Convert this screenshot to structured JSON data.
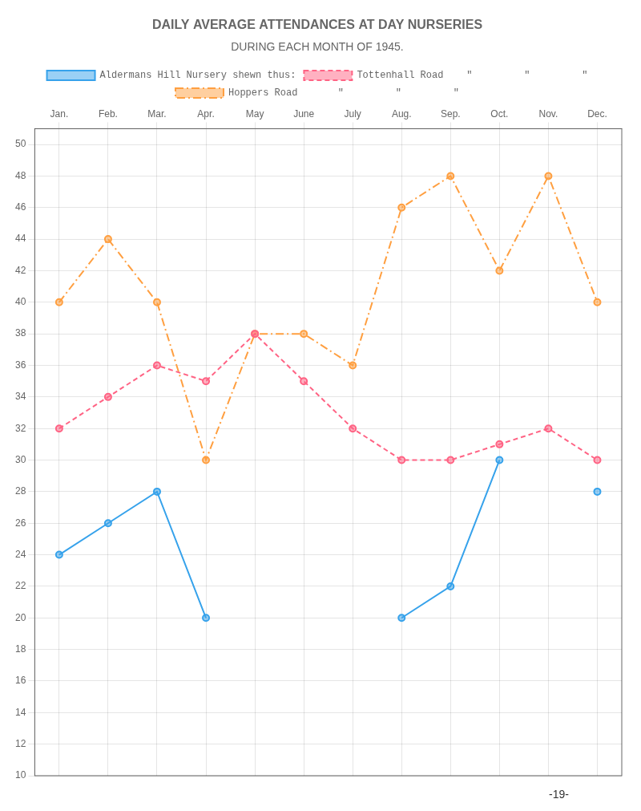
{
  "chart_data": {
    "type": "line",
    "title": "DAILY AVERAGE ATTENDANCES AT DAY NURSERIES",
    "subtitle": "DURING EACH MONTH OF 1945.",
    "categories": [
      "Jan.",
      "Feb.",
      "Mar.",
      "Apr.",
      "May",
      "June",
      "July",
      "Aug.",
      "Sep.",
      "Oct.",
      "Nov.",
      "Dec."
    ],
    "series": [
      {
        "name": "Aldermans Hill Nursery shewn thus:",
        "line_style": "solid",
        "marker": "circle",
        "values": [
          24,
          26,
          28,
          20,
          null,
          null,
          null,
          20,
          22,
          30,
          null,
          28
        ]
      },
      {
        "name": "Tottenhall Road    \"         \"         \"",
        "line_style": "dashed",
        "marker": "circle",
        "values": [
          32,
          34,
          36,
          35,
          38,
          35,
          32,
          30,
          30,
          31,
          32,
          30
        ]
      },
      {
        "name": "Hoppers Road       \"         \"         \"",
        "line_style": "dashdot",
        "marker": "circle",
        "values": [
          40,
          44,
          40,
          30,
          38,
          38,
          36,
          46,
          48,
          42,
          48,
          40
        ]
      }
    ],
    "ylim": [
      10,
      51
    ],
    "yticks": [
      10,
      12,
      14,
      16,
      18,
      20,
      22,
      24,
      26,
      28,
      30,
      32,
      34,
      36,
      38,
      40,
      42,
      44,
      46,
      48,
      50
    ],
    "grid": true,
    "legend": "top",
    "annotations": [
      "-19-"
    ]
  }
}
